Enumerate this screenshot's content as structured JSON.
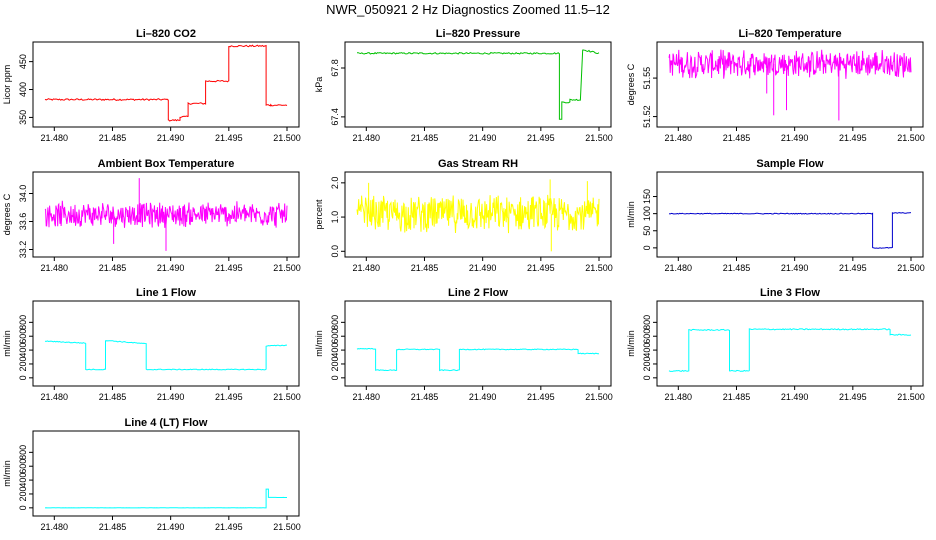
{
  "figure_title": "NWR_050921  2 Hz Diagnostics Zoomed 11.5–12",
  "chart_data": [
    {
      "type": "line",
      "title": "Li–820 CO2",
      "ylabel": "Licor ppm",
      "color": "#ff0000",
      "x_ticks": [
        "21.480",
        "21.485",
        "21.490",
        "21.495",
        "21.500"
      ],
      "xlim": [
        21.4792,
        21.5
      ],
      "ylim": [
        340,
        478
      ],
      "y_ticks": [
        {
          "value": 350,
          "label": "350"
        },
        {
          "value": 400,
          "label": "400"
        },
        {
          "value": 450,
          "label": "450"
        }
      ],
      "series": [
        {
          "x": [
            21.4792,
            21.4898,
            21.4898,
            21.4908,
            21.4908,
            21.4915,
            21.4915,
            21.493,
            21.493,
            21.495,
            21.495,
            21.4982,
            21.4982,
            21.4986,
            21.5
          ],
          "y": [
            382,
            382,
            345,
            345,
            351,
            351,
            375,
            375,
            415,
            415,
            478,
            478,
            372,
            372,
            372
          ],
          "noise": 1.5
        }
      ]
    },
    {
      "type": "line",
      "title": "Li–820 Pressure",
      "ylabel": "kPa",
      "color": "#00c000",
      "x_ticks": [
        "21.480",
        "21.485",
        "21.490",
        "21.495",
        "21.500"
      ],
      "xlim": [
        21.4792,
        21.5
      ],
      "ylim": [
        67.35,
        67.98
      ],
      "y_ticks": [
        {
          "value": 67.4,
          "label": "67.4"
        },
        {
          "value": 67.8,
          "label": "67.8"
        }
      ],
      "series": [
        {
          "x": [
            21.4792,
            21.4966,
            21.4966,
            21.4968,
            21.4968,
            21.4975,
            21.4975,
            21.4984,
            21.4986,
            21.5
          ],
          "y": [
            67.92,
            67.92,
            67.38,
            67.38,
            67.52,
            67.52,
            67.54,
            67.54,
            67.95,
            67.92
          ],
          "noise": 0.006
        }
      ]
    },
    {
      "type": "line",
      "title": "Li–820 Temperature",
      "ylabel": "degrees C",
      "color": "#ff00ff",
      "x_ticks": [
        "21.480",
        "21.485",
        "21.490",
        "21.495",
        "21.500"
      ],
      "xlim": [
        21.4792,
        21.5
      ],
      "ylim": [
        51.515,
        51.575
      ],
      "y_ticks": [
        {
          "value": 51.52,
          "label": "51.52"
        },
        {
          "value": 51.55,
          "label": "51.55"
        }
      ],
      "series": [
        {
          "x": [
            21.4792,
            21.5
          ],
          "y": [
            51.562,
            51.562
          ],
          "band": [
            51.549,
            51.573
          ],
          "spikes": [
            {
              "x": 21.4882,
              "y": 51.521
            },
            {
              "x": 21.4893,
              "y": 51.525
            },
            {
              "x": 21.4938,
              "y": 51.517
            },
            {
              "x": 21.4876,
              "y": 51.538
            }
          ]
        }
      ]
    },
    {
      "type": "line",
      "title": "Ambient Box Temperature",
      "ylabel": "degrees C",
      "color": "#ff00ff",
      "x_ticks": [
        "21.480",
        "21.485",
        "21.490",
        "21.495",
        "21.500"
      ],
      "xlim": [
        21.4792,
        21.5
      ],
      "ylim": [
        33.15,
        34.25
      ],
      "y_ticks": [
        {
          "value": 33.2,
          "label": "33.2"
        },
        {
          "value": 33.6,
          "label": "33.6"
        },
        {
          "value": 34.0,
          "label": "34.0"
        }
      ],
      "series": [
        {
          "x": [
            21.4792,
            21.5
          ],
          "y": [
            33.7,
            33.7
          ],
          "band": [
            33.5,
            33.9
          ],
          "spikes": [
            {
              "x": 21.4873,
              "y": 34.22
            },
            {
              "x": 21.4896,
              "y": 33.18
            },
            {
              "x": 21.4851,
              "y": 33.28
            }
          ]
        }
      ]
    },
    {
      "type": "line",
      "title": "Gas Stream RH",
      "ylabel": "percent",
      "color": "#ffff00",
      "x_ticks": [
        "21.480",
        "21.485",
        "21.490",
        "21.495",
        "21.500"
      ],
      "xlim": [
        21.4792,
        21.5
      ],
      "ylim": [
        -0.05,
        2.2
      ],
      "y_ticks": [
        {
          "value": 0.0,
          "label": "0.0"
        },
        {
          "value": 1.0,
          "label": "1.0"
        },
        {
          "value": 2.0,
          "label": "2.0"
        }
      ],
      "series": [
        {
          "x": [
            21.4792,
            21.5
          ],
          "y": [
            1.1,
            1.1
          ],
          "band": [
            0.5,
            1.7
          ],
          "spikes": [
            {
              "x": 21.4958,
              "y": 2.1
            },
            {
              "x": 21.4959,
              "y": 0.0
            },
            {
              "x": 21.4802,
              "y": 2.0
            },
            {
              "x": 21.499,
              "y": 2.05
            }
          ]
        }
      ]
    },
    {
      "type": "line",
      "title": "Sample Flow",
      "ylabel": "ml/min",
      "color": "#0000cc",
      "x_ticks": [
        "21.480",
        "21.485",
        "21.490",
        "21.495",
        "21.500"
      ],
      "xlim": [
        21.4792,
        21.5
      ],
      "ylim": [
        -15,
        210
      ],
      "y_ticks": [
        {
          "value": 0,
          "label": "0"
        },
        {
          "value": 50,
          "label": "50"
        },
        {
          "value": 100,
          "label": "100"
        },
        {
          "value": 150,
          "label": "150"
        }
      ],
      "series": [
        {
          "x": [
            21.4792,
            21.4967,
            21.4967,
            21.4984,
            21.4984,
            21.5
          ],
          "y": [
            100,
            100,
            0,
            0,
            102,
            102
          ],
          "noise": 1.2
        }
      ]
    },
    {
      "type": "line",
      "title": "Line 1 Flow",
      "ylabel": "ml/min",
      "color": "#00ffff",
      "x_ticks": [
        "21.480",
        "21.485",
        "21.490",
        "21.495",
        "21.500"
      ],
      "xlim": [
        21.4792,
        21.5
      ],
      "ylim": [
        -60,
        1050
      ],
      "y_ticks": [
        {
          "value": 0,
          "label": "0"
        },
        {
          "value": 200,
          "label": "200"
        },
        {
          "value": 400,
          "label": "400"
        },
        {
          "value": 600,
          "label": "600"
        },
        {
          "value": 800,
          "label": "800"
        }
      ],
      "series": [
        {
          "x": [
            21.4792,
            21.4827,
            21.4827,
            21.4844,
            21.4844,
            21.4879,
            21.4879,
            21.4982,
            21.4982,
            21.5
          ],
          "y": [
            530,
            500,
            120,
            120,
            540,
            490,
            120,
            120,
            460,
            470
          ],
          "noise": 6
        }
      ]
    },
    {
      "type": "line",
      "title": "Line 2 Flow",
      "ylabel": "ml/min",
      "color": "#00ffff",
      "x_ticks": [
        "21.480",
        "21.485",
        "21.490",
        "21.495",
        "21.500"
      ],
      "xlim": [
        21.4792,
        21.5
      ],
      "ylim": [
        -60,
        1050
      ],
      "y_ticks": [
        {
          "value": 0,
          "label": "0"
        },
        {
          "value": 200,
          "label": "200"
        },
        {
          "value": 400,
          "label": "400"
        },
        {
          "value": 600,
          "label": "600"
        },
        {
          "value": 800,
          "label": "800"
        }
      ],
      "series": [
        {
          "x": [
            21.4792,
            21.4808,
            21.4808,
            21.4826,
            21.4826,
            21.4863,
            21.4863,
            21.488,
            21.488,
            21.4982,
            21.4982,
            21.5
          ],
          "y": [
            420,
            420,
            110,
            110,
            410,
            410,
            110,
            110,
            410,
            410,
            350,
            350
          ],
          "noise": 6
        }
      ]
    },
    {
      "type": "line",
      "title": "Line 3 Flow",
      "ylabel": "ml/min",
      "color": "#00ffff",
      "x_ticks": [
        "21.480",
        "21.485",
        "21.490",
        "21.495",
        "21.500"
      ],
      "xlim": [
        21.4792,
        21.5
      ],
      "ylim": [
        -60,
        1050
      ],
      "y_ticks": [
        {
          "value": 0,
          "label": "0"
        },
        {
          "value": 200,
          "label": "200"
        },
        {
          "value": 400,
          "label": "400"
        },
        {
          "value": 600,
          "label": "600"
        },
        {
          "value": 800,
          "label": "800"
        }
      ],
      "series": [
        {
          "x": [
            21.4792,
            21.4809,
            21.4809,
            21.4844,
            21.4844,
            21.4861,
            21.4861,
            21.4982,
            21.4982,
            21.5
          ],
          "y": [
            100,
            100,
            690,
            690,
            100,
            100,
            700,
            700,
            620,
            620
          ],
          "noise": 8
        }
      ]
    },
    {
      "type": "line",
      "title": "Line 4 (LT) Flow",
      "ylabel": "ml/min",
      "color": "#00ffff",
      "x_ticks": [
        "21.480",
        "21.485",
        "21.490",
        "21.495",
        "21.500"
      ],
      "xlim": [
        21.4792,
        21.5
      ],
      "ylim": [
        -60,
        1050
      ],
      "y_ticks": [
        {
          "value": 0,
          "label": "0"
        },
        {
          "value": 200,
          "label": "200"
        },
        {
          "value": 400,
          "label": "400"
        },
        {
          "value": 600,
          "label": "600"
        },
        {
          "value": 800,
          "label": "800"
        }
      ],
      "series": [
        {
          "x": [
            21.4792,
            21.4982,
            21.4982,
            21.4984,
            21.4984,
            21.5
          ],
          "y": [
            0,
            0,
            270,
            270,
            150,
            150
          ],
          "noise": 1
        }
      ]
    }
  ]
}
